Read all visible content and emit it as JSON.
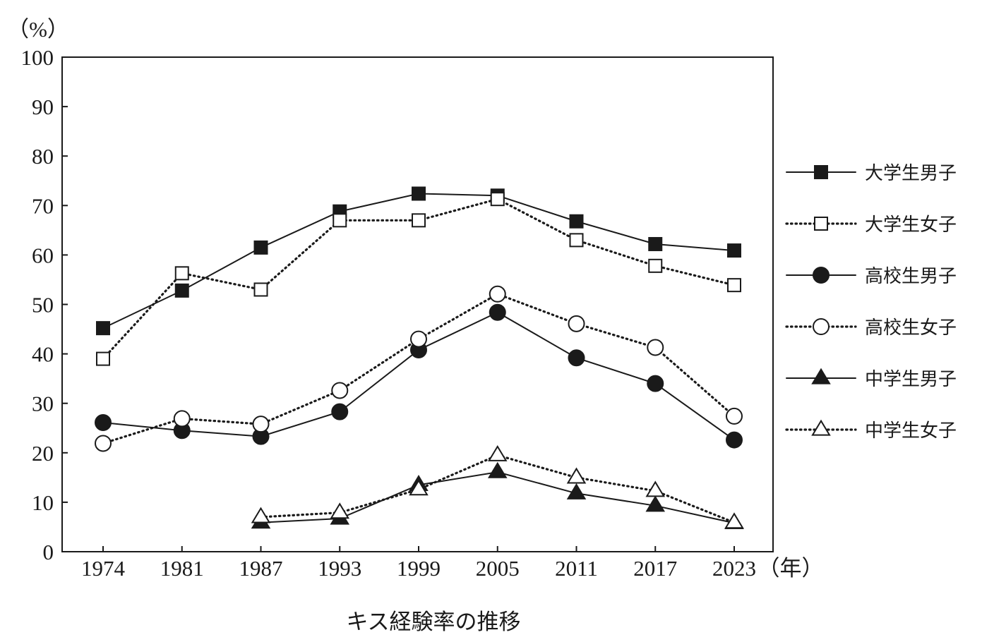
{
  "caption": "キス経験率の推移",
  "chart_data": {
    "type": "line",
    "title": "",
    "ylabel": "（%）",
    "xlabel": "（年）",
    "ylim": [
      0,
      100
    ],
    "yticks": [
      0,
      10,
      20,
      30,
      40,
      50,
      60,
      70,
      80,
      90,
      100
    ],
    "x": [
      "1974",
      "1981",
      "1987",
      "1993",
      "1999",
      "2005",
      "2011",
      "2017",
      "2023"
    ],
    "legend_position": "right",
    "grid": false,
    "series": [
      {
        "name": "大学生男子",
        "marker": "square",
        "fill": "filled",
        "line": "solid",
        "values": [
          45.2,
          52.8,
          61.5,
          68.8,
          72.4,
          72.0,
          66.8,
          62.2,
          60.9
        ]
      },
      {
        "name": "大学生女子",
        "marker": "square",
        "fill": "open",
        "line": "dotted",
        "values": [
          39.0,
          56.3,
          53.0,
          67.0,
          67.0,
          71.3,
          63.0,
          57.8,
          53.9
        ]
      },
      {
        "name": "高校生男子",
        "marker": "circle",
        "fill": "filled",
        "line": "solid",
        "values": [
          26.1,
          24.5,
          23.3,
          28.3,
          40.8,
          48.4,
          39.2,
          34.0,
          22.6
        ]
      },
      {
        "name": "高校生女子",
        "marker": "circle",
        "fill": "open",
        "line": "dotted",
        "values": [
          21.9,
          26.9,
          25.8,
          32.6,
          43.0,
          52.1,
          46.1,
          41.3,
          27.4
        ]
      },
      {
        "name": "中学生男子",
        "marker": "triangle",
        "fill": "filled",
        "line": "solid",
        "values": [
          null,
          null,
          5.9,
          6.7,
          13.5,
          16.1,
          11.8,
          9.3,
          5.8
        ]
      },
      {
        "name": "中学生女子",
        "marker": "triangle",
        "fill": "open",
        "line": "dotted",
        "values": [
          null,
          null,
          7.0,
          7.9,
          12.6,
          19.5,
          15.0,
          12.3,
          5.9
        ]
      }
    ]
  }
}
